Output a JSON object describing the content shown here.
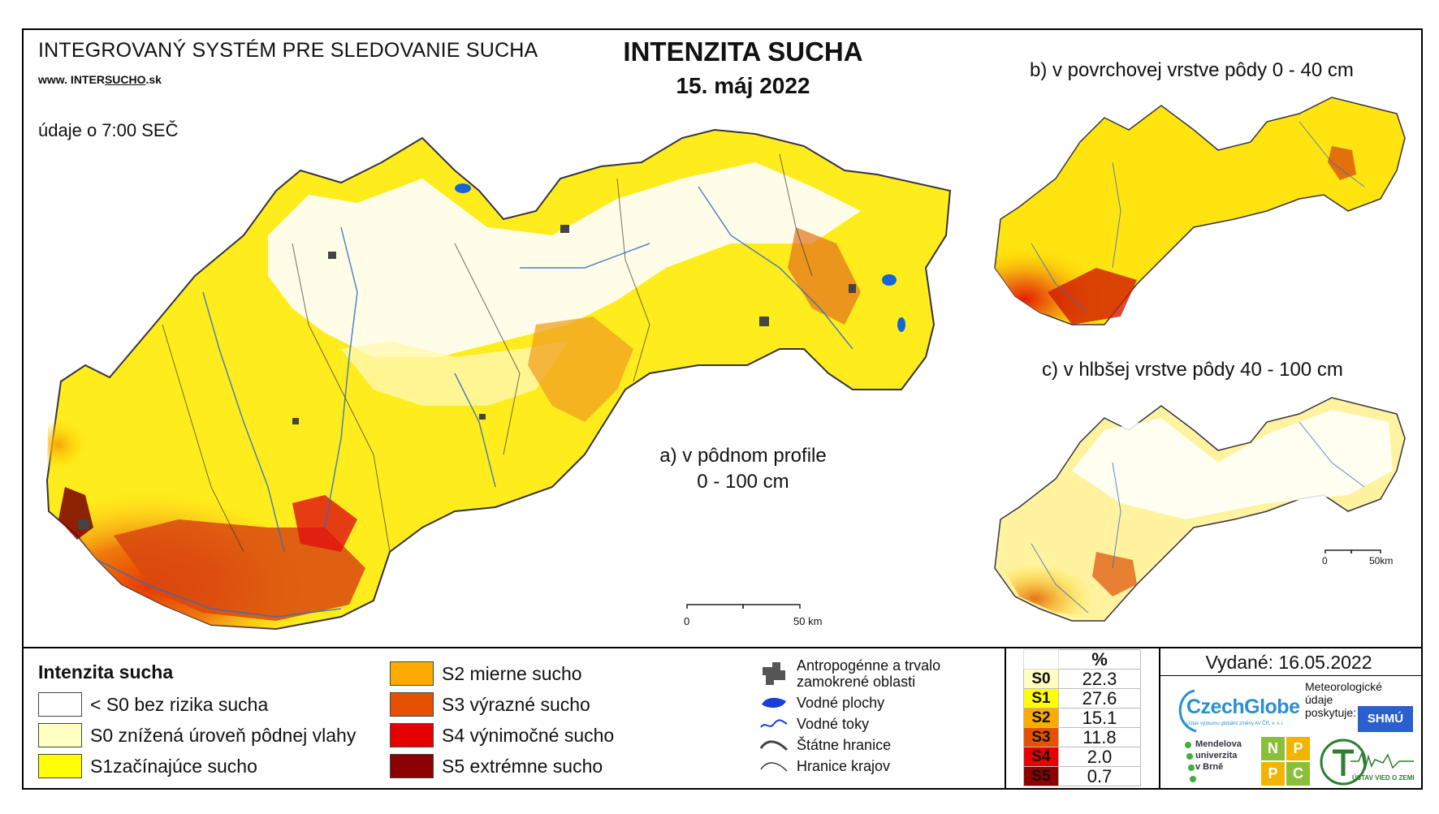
{
  "header": {
    "system_title": "INTEGROVANÝ SYSTÉM PRE SLEDOVANIE SUCHA",
    "url_prefix": "www. INTER",
    "url_brand": "SUCHO",
    "url_suffix": ".sk",
    "measurement_time": "údaje o 7:00 SEČ",
    "title": "INTENZITA SUCHA",
    "date": "15. máj 2022"
  },
  "maps": {
    "main_label_line1": "a) v pôdnom profile",
    "main_label_line2": "0 - 100 cm",
    "top_right_label": "b) v povrchovej vrstve pôdy 0 - 40 cm",
    "bottom_right_label": "c) v hlbšej vrstve pôdy 40 - 100 cm",
    "main_scale": {
      "start": "0",
      "end": "50 km"
    },
    "small_scale": {
      "start": "0",
      "end": "50km"
    }
  },
  "legend": {
    "title": "Intenzita sucha",
    "classes": [
      {
        "label": "< S0 bez rizika sucha",
        "color": "#ffffff"
      },
      {
        "label": "S0 znížená úroveň pôdnej vlahy",
        "color": "#ffffc0"
      },
      {
        "label": "S1začínajúce sucho",
        "color": "#ffff00"
      },
      {
        "label": "S2 mierne sucho",
        "color": "#ffaa00"
      },
      {
        "label": "S3 výrazné sucho",
        "color": "#e65100"
      },
      {
        "label": "S4 výnimočné sucho",
        "color": "#e60000"
      },
      {
        "label": "S5 extrémne sucho",
        "color": "#8b0000"
      }
    ],
    "symbols": {
      "anthropogenic_line1": "Antropogénne a trvalo",
      "anthropogenic_line2": "zamokrené oblasti",
      "water_bodies": "Vodné plochy",
      "water_streams": "Vodné toky",
      "state_border": "Štátne hranice",
      "region_border": "Hranice krajov"
    }
  },
  "percent_table": {
    "header": "%",
    "rows": [
      {
        "code": "S0",
        "value": "22.3",
        "color": "#ffffc0"
      },
      {
        "code": "S1",
        "value": "27.6",
        "color": "#ffff00"
      },
      {
        "code": "S2",
        "value": "15.1",
        "color": "#ffaa00"
      },
      {
        "code": "S3",
        "value": "11.8",
        "color": "#e65100"
      },
      {
        "code": "S4",
        "value": "2.0",
        "color": "#e60000"
      },
      {
        "code": "S5",
        "value": "0.7",
        "color": "#8b0000"
      }
    ]
  },
  "footer": {
    "issued": "Vydané: 16.05.2022",
    "czechglobe": "CzechGlobe",
    "czechglobe_sub": "Ústav výzkumu globální změny AV ČR, v. v. i.",
    "meteo_line1": "Meteorologické",
    "meteo_line2": "údaje",
    "meteo_line3": "poskytuje:",
    "shmu": "SHMÚ",
    "mendel_line1": "Mendelova",
    "mendel_line2": "univerzita",
    "mendel_line3": "v Brně",
    "nppc": [
      "N",
      "P",
      "P",
      "C"
    ],
    "uvoz": "ÚSTAV VIED O ZEMI"
  }
}
